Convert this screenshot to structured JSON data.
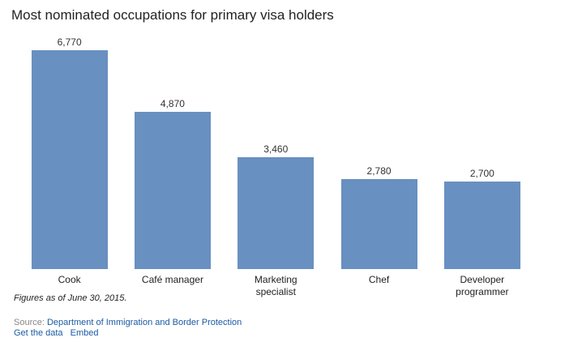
{
  "chart_data": {
    "type": "bar",
    "title": "Most nominated occupations for primary visa holders",
    "categories": [
      "Cook",
      "Café manager",
      "Marketing specialist",
      "Chef",
      "Developer programmer"
    ],
    "values": [
      6770,
      4870,
      3460,
      2780,
      2700
    ],
    "value_labels": [
      "6,770",
      "4,870",
      "3,460",
      "2,780",
      "2,700"
    ],
    "color": "#6890c0",
    "note": "Figures as of June 30, 2015.",
    "source_label": "Source:",
    "source": "Department of Immigration and Border Protection",
    "links": [
      "Get the data",
      "Embed"
    ]
  }
}
